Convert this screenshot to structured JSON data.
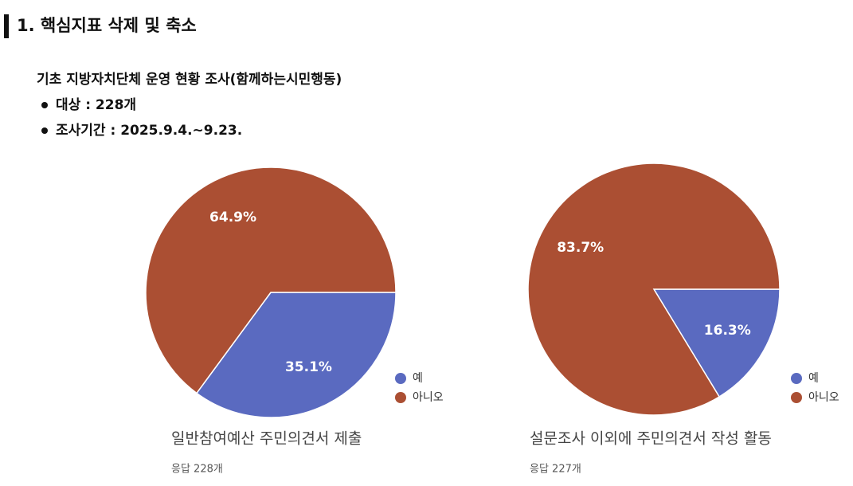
{
  "header": {
    "title": "1. 핵심지표 삭제 및 축소"
  },
  "survey": {
    "name": "기초 지방자치단체 운영 현황 조사(함께하는시민행동)",
    "bullets": [
      "대상 : 228개",
      "조사기간 : 2025.9.4.~9.23."
    ]
  },
  "chart_data": [
    {
      "type": "pie",
      "title": "일반참여예산 주민의견서 제출",
      "subtitle": "응답 228개",
      "categories": [
        "예",
        "아니오"
      ],
      "values": [
        35.1,
        64.9
      ],
      "value_labels": [
        "35.1%",
        "64.9%"
      ],
      "colors": [
        "#5a6ac0",
        "#ab4f33"
      ]
    },
    {
      "type": "pie",
      "title": "설문조사 이외에 주민의견서 작성 활동",
      "subtitle": "응답 227개",
      "categories": [
        "예",
        "아니오"
      ],
      "values": [
        16.3,
        83.7
      ],
      "value_labels": [
        "16.3%",
        "83.7%"
      ],
      "colors": [
        "#5a6ac0",
        "#ab4f33"
      ]
    }
  ]
}
